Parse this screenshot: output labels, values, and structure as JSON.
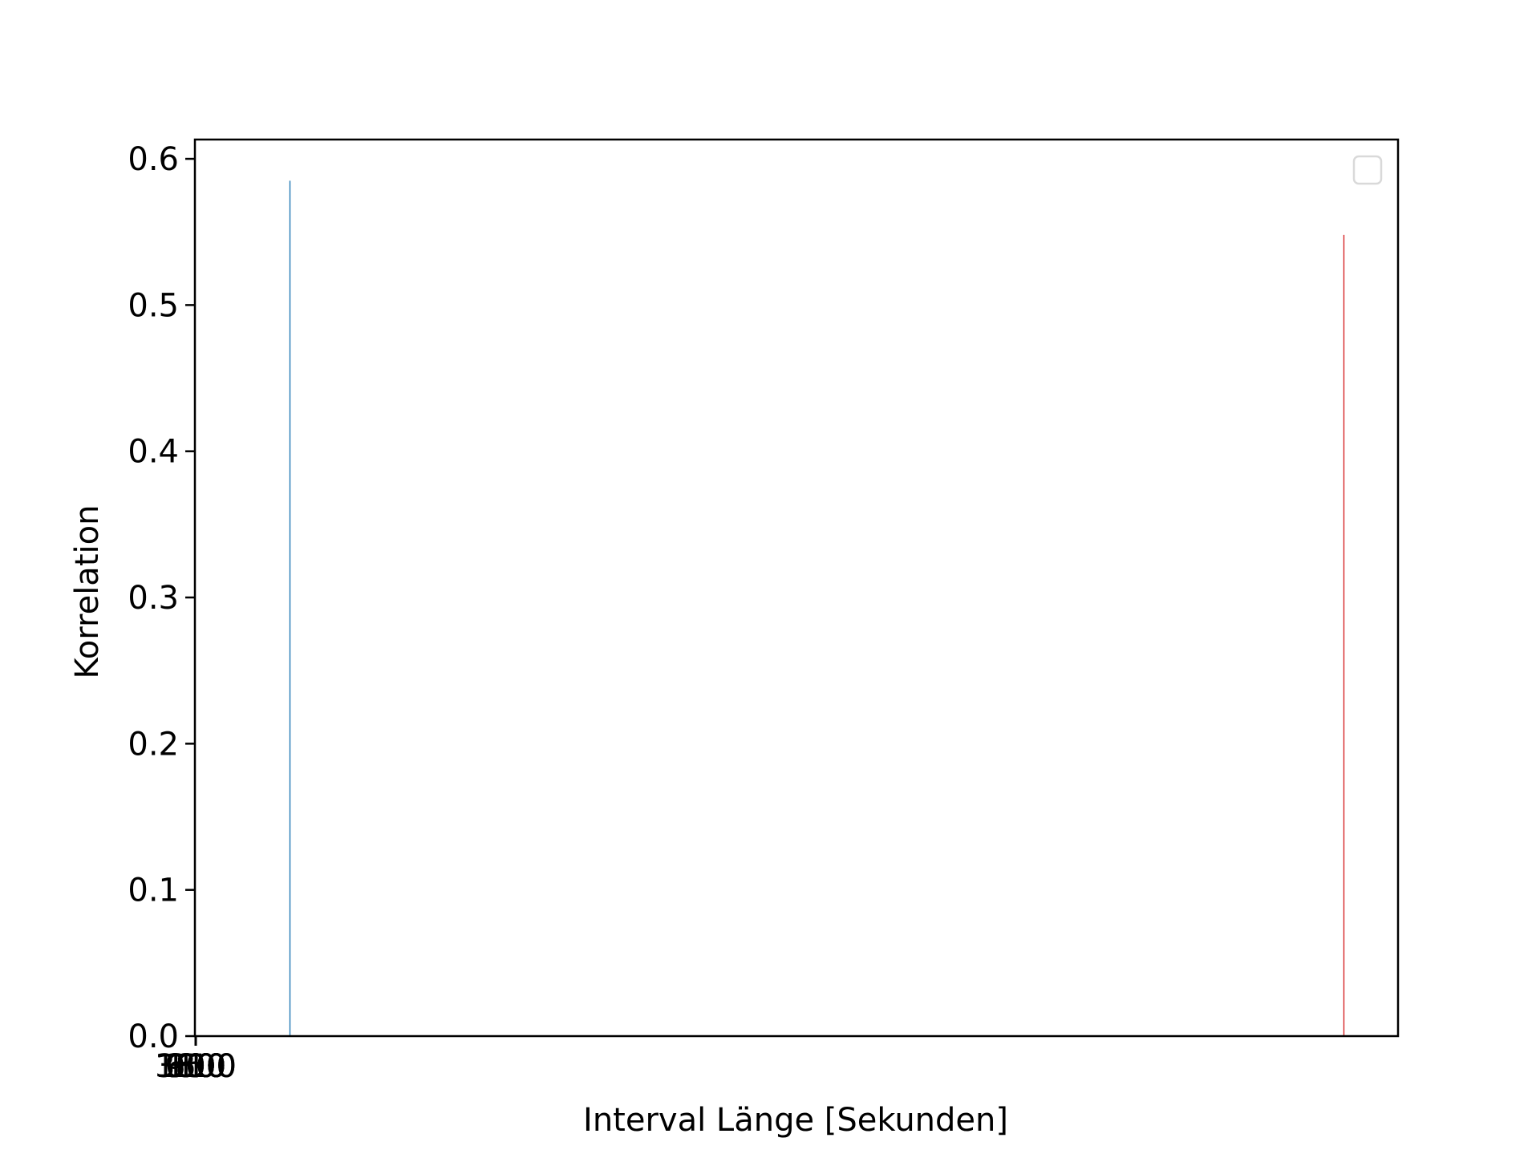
{
  "chart_data": {
    "type": "bar",
    "title": "",
    "xlabel": "Interval Länge [Sekunden]",
    "ylabel": "Korrelation",
    "ylim": [
      0,
      0.6132
    ],
    "yticks": [
      0.0,
      0.1,
      0.2,
      0.3,
      0.4,
      0.5,
      0.6
    ],
    "ytick_labels": [
      "0.0",
      "0.1",
      "0.2",
      "0.3",
      "0.4",
      "0.5",
      "0.6"
    ],
    "xtick_labels": [
      "3600",
      "1800",
      "900",
      "600",
      "300",
      "150",
      "60",
      "10",
      "1"
    ],
    "grid": false,
    "legend": {
      "placement": "top-right",
      "entries": []
    },
    "series": [
      {
        "color": "#1f77b4",
        "points": [
          {
            "x_fraction": 0.079,
            "value": 0.585
          }
        ]
      },
      {
        "color": "#d62728",
        "points": [
          {
            "x_fraction": 0.955,
            "value": 0.548
          }
        ]
      }
    ]
  }
}
